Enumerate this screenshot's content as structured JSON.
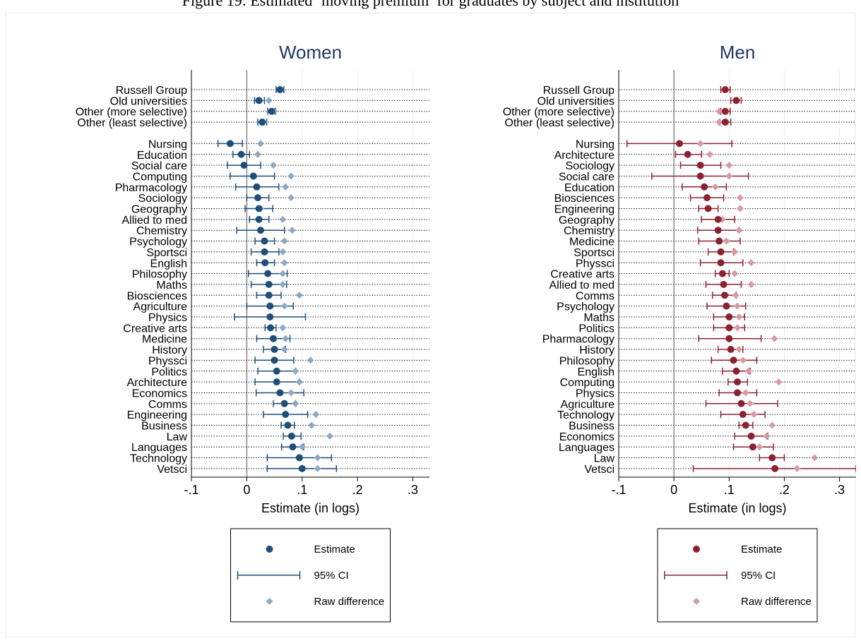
{
  "figure_title": "Figure 19: Estimated ‘moving premium’ for graduates by subject and institution",
  "colors": {
    "women_marker": "#1f4e79",
    "women_raw": "#8fa8c4",
    "men_marker": "#8b2232",
    "men_raw": "#d79ba2",
    "title_text": "#1f3864",
    "reference_line": "#888888",
    "grid": "#ececec"
  },
  "chart_data": [
    {
      "type": "scatter",
      "title": "Women",
      "xlabel": "Estimate (in logs)",
      "xlim": [
        -0.1,
        0.33
      ],
      "xticks": [
        -0.1,
        0,
        0.1,
        0.2,
        0.3
      ],
      "xtick_labels": [
        "-.1",
        "0",
        ".1",
        ".2",
        ".3"
      ],
      "reference_line_x": 0,
      "grid": true,
      "legend": [
        {
          "label": "Estimate",
          "symbol": "dot"
        },
        {
          "label": "95% CI",
          "symbol": "ci"
        },
        {
          "label": "Raw difference",
          "symbol": "diamond"
        }
      ],
      "legend_placement": "bottom",
      "groups": [
        {
          "rows": [
            {
              "label": "Russell Group",
              "est": 0.06,
              "lo": 0.053,
              "hi": 0.067,
              "raw": 0.06
            },
            {
              "label": "Old universities",
              "est": 0.022,
              "lo": 0.014,
              "hi": 0.032,
              "raw": 0.04
            },
            {
              "label": "Other (more selective)",
              "est": 0.045,
              "lo": 0.038,
              "hi": 0.052,
              "raw": 0.05
            },
            {
              "label": "Other (least selective)",
              "est": 0.028,
              "lo": 0.02,
              "hi": 0.036,
              "raw": 0.03
            }
          ]
        },
        {
          "rows": [
            {
              "label": "Nursing",
              "est": -0.03,
              "lo": -0.052,
              "hi": -0.008,
              "raw": 0.025
            },
            {
              "label": "Education",
              "est": -0.01,
              "lo": -0.025,
              "hi": 0.005,
              "raw": 0.02
            },
            {
              "label": "Social care",
              "est": -0.005,
              "lo": -0.035,
              "hi": 0.025,
              "raw": 0.048
            },
            {
              "label": "Computing",
              "est": 0.012,
              "lo": -0.03,
              "hi": 0.05,
              "raw": 0.08
            },
            {
              "label": "Pharmacology",
              "est": 0.018,
              "lo": -0.02,
              "hi": 0.058,
              "raw": 0.07
            },
            {
              "label": "Sociology",
              "est": 0.02,
              "lo": 0.0,
              "hi": 0.04,
              "raw": 0.08
            },
            {
              "label": "Geography",
              "est": 0.022,
              "lo": -0.003,
              "hi": 0.047,
              "raw": 0.025
            },
            {
              "label": "Allied to med",
              "est": 0.022,
              "lo": 0.005,
              "hi": 0.04,
              "raw": 0.065
            },
            {
              "label": "Chemistry",
              "est": 0.025,
              "lo": -0.018,
              "hi": 0.068,
              "raw": 0.082
            },
            {
              "label": "Psychology",
              "est": 0.032,
              "lo": 0.015,
              "hi": 0.05,
              "raw": 0.068
            },
            {
              "label": "Sportsci",
              "est": 0.032,
              "lo": 0.008,
              "hi": 0.058,
              "raw": 0.065
            },
            {
              "label": "English",
              "est": 0.033,
              "lo": 0.018,
              "hi": 0.05,
              "raw": 0.068
            },
            {
              "label": "Philosophy",
              "est": 0.038,
              "lo": 0.003,
              "hi": 0.073,
              "raw": 0.065
            },
            {
              "label": "Maths",
              "est": 0.04,
              "lo": 0.008,
              "hi": 0.072,
              "raw": 0.065
            },
            {
              "label": "Biosciences",
              "est": 0.04,
              "lo": 0.018,
              "hi": 0.062,
              "raw": 0.095
            },
            {
              "label": "Agriculture",
              "est": 0.042,
              "lo": 0.0,
              "hi": 0.084,
              "raw": 0.068
            },
            {
              "label": "Physics",
              "est": 0.042,
              "lo": -0.022,
              "hi": 0.106,
              "raw": 0.042
            },
            {
              "label": "Creative arts",
              "est": 0.043,
              "lo": 0.033,
              "hi": 0.053,
              "raw": 0.065
            },
            {
              "label": "Medicine",
              "est": 0.048,
              "lo": 0.018,
              "hi": 0.078,
              "raw": 0.07
            },
            {
              "label": "History",
              "est": 0.05,
              "lo": 0.03,
              "hi": 0.07,
              "raw": 0.068
            },
            {
              "label": "Physsci",
              "est": 0.05,
              "lo": 0.015,
              "hi": 0.085,
              "raw": 0.115
            },
            {
              "label": "Politics",
              "est": 0.054,
              "lo": 0.02,
              "hi": 0.088,
              "raw": 0.088
            },
            {
              "label": "Architecture",
              "est": 0.054,
              "lo": 0.015,
              "hi": 0.095,
              "raw": 0.095
            },
            {
              "label": "Economics",
              "est": 0.06,
              "lo": 0.017,
              "hi": 0.103,
              "raw": 0.08
            },
            {
              "label": "Comms",
              "est": 0.068,
              "lo": 0.048,
              "hi": 0.088,
              "raw": 0.088
            },
            {
              "label": "Engineering",
              "est": 0.07,
              "lo": 0.03,
              "hi": 0.11,
              "raw": 0.125
            },
            {
              "label": "Business",
              "est": 0.074,
              "lo": 0.062,
              "hi": 0.086,
              "raw": 0.117
            },
            {
              "label": "Law",
              "est": 0.081,
              "lo": 0.066,
              "hi": 0.098,
              "raw": 0.15
            },
            {
              "label": "Languages",
              "est": 0.083,
              "lo": 0.063,
              "hi": 0.103,
              "raw": 0.1
            },
            {
              "label": "Technology",
              "est": 0.095,
              "lo": 0.037,
              "hi": 0.153,
              "raw": 0.128
            },
            {
              "label": "Vetsci",
              "est": 0.1,
              "lo": 0.037,
              "hi": 0.162,
              "raw": 0.128
            }
          ]
        }
      ]
    },
    {
      "type": "scatter",
      "title": "Men",
      "xlabel": "Estimate (in logs)",
      "xlim": [
        -0.1,
        0.33
      ],
      "xticks": [
        -0.1,
        0,
        0.1,
        0.2,
        0.3
      ],
      "xtick_labels": [
        "-.1",
        "0",
        ".1",
        ".2",
        ".3"
      ],
      "reference_line_x": 0,
      "grid": true,
      "legend": [
        {
          "label": "Estimate",
          "symbol": "dot"
        },
        {
          "label": "95% CI",
          "symbol": "ci"
        },
        {
          "label": "Raw difference",
          "symbol": "diamond"
        }
      ],
      "legend_placement": "bottom",
      "groups": [
        {
          "rows": [
            {
              "label": "Russell Group",
              "est": 0.093,
              "lo": 0.085,
              "hi": 0.102,
              "raw": 0.093
            },
            {
              "label": "Old universities",
              "est": 0.113,
              "lo": 0.103,
              "hi": 0.122,
              "raw": 0.115
            },
            {
              "label": "Other (more selective)",
              "est": 0.093,
              "lo": 0.085,
              "hi": 0.102,
              "raw": 0.082
            },
            {
              "label": "Other (least selective)",
              "est": 0.093,
              "lo": 0.083,
              "hi": 0.103,
              "raw": 0.082
            }
          ]
        },
        {
          "rows": [
            {
              "label": "Nursing",
              "est": 0.01,
              "lo": -0.085,
              "hi": 0.105,
              "raw": 0.048
            },
            {
              "label": "Architecture",
              "est": 0.025,
              "lo": 0.003,
              "hi": 0.05,
              "raw": 0.065
            },
            {
              "label": "Sociology",
              "est": 0.048,
              "lo": 0.012,
              "hi": 0.085,
              "raw": 0.1
            },
            {
              "label": "Social care",
              "est": 0.048,
              "lo": -0.04,
              "hi": 0.135,
              "raw": 0.1
            },
            {
              "label": "Education",
              "est": 0.055,
              "lo": 0.015,
              "hi": 0.095,
              "raw": 0.075
            },
            {
              "label": "Biosciences",
              "est": 0.06,
              "lo": 0.03,
              "hi": 0.09,
              "raw": 0.12
            },
            {
              "label": "Engineering",
              "est": 0.062,
              "lo": 0.045,
              "hi": 0.08,
              "raw": 0.12
            },
            {
              "label": "Geography",
              "est": 0.08,
              "lo": 0.05,
              "hi": 0.11,
              "raw": 0.088
            },
            {
              "label": "Chemistry",
              "est": 0.08,
              "lo": 0.043,
              "hi": 0.118,
              "raw": 0.118
            },
            {
              "label": "Medicine",
              "est": 0.082,
              "lo": 0.045,
              "hi": 0.12,
              "raw": 0.095
            },
            {
              "label": "Sportsci",
              "est": 0.085,
              "lo": 0.062,
              "hi": 0.108,
              "raw": 0.11
            },
            {
              "label": "Physsci",
              "est": 0.085,
              "lo": 0.048,
              "hi": 0.125,
              "raw": 0.14
            },
            {
              "label": "Creative arts",
              "est": 0.088,
              "lo": 0.075,
              "hi": 0.1,
              "raw": 0.11
            },
            {
              "label": "Allied to med",
              "est": 0.09,
              "lo": 0.058,
              "hi": 0.122,
              "raw": 0.14
            },
            {
              "label": "Comms",
              "est": 0.092,
              "lo": 0.07,
              "hi": 0.113,
              "raw": 0.112
            },
            {
              "label": "Psychology",
              "est": 0.095,
              "lo": 0.06,
              "hi": 0.13,
              "raw": 0.115
            },
            {
              "label": "Maths",
              "est": 0.1,
              "lo": 0.072,
              "hi": 0.128,
              "raw": 0.118
            },
            {
              "label": "Politics",
              "est": 0.1,
              "lo": 0.072,
              "hi": 0.128,
              "raw": 0.115
            },
            {
              "label": "Pharmacology",
              "est": 0.1,
              "lo": 0.045,
              "hi": 0.158,
              "raw": 0.182
            },
            {
              "label": "History",
              "est": 0.103,
              "lo": 0.08,
              "hi": 0.125,
              "raw": 0.118
            },
            {
              "label": "Philosophy",
              "est": 0.108,
              "lo": 0.068,
              "hi": 0.15,
              "raw": 0.125
            },
            {
              "label": "English",
              "est": 0.113,
              "lo": 0.088,
              "hi": 0.138,
              "raw": 0.135
            },
            {
              "label": "Computing",
              "est": 0.115,
              "lo": 0.098,
              "hi": 0.133,
              "raw": 0.19
            },
            {
              "label": "Physics",
              "est": 0.115,
              "lo": 0.082,
              "hi": 0.15,
              "raw": 0.13
            },
            {
              "label": "Agriculture",
              "est": 0.122,
              "lo": 0.058,
              "hi": 0.188,
              "raw": 0.138
            },
            {
              "label": "Technology",
              "est": 0.125,
              "lo": 0.085,
              "hi": 0.165,
              "raw": 0.145
            },
            {
              "label": "Business",
              "est": 0.13,
              "lo": 0.118,
              "hi": 0.143,
              "raw": 0.178
            },
            {
              "label": "Economics",
              "est": 0.14,
              "lo": 0.11,
              "hi": 0.17,
              "raw": 0.168
            },
            {
              "label": "Languages",
              "est": 0.143,
              "lo": 0.108,
              "hi": 0.18,
              "raw": 0.155
            },
            {
              "label": "Law",
              "est": 0.178,
              "lo": 0.155,
              "hi": 0.2,
              "raw": 0.255
            },
            {
              "label": "Vetsci",
              "est": 0.183,
              "lo": 0.035,
              "hi": 0.33,
              "raw": 0.223
            }
          ]
        }
      ]
    }
  ]
}
